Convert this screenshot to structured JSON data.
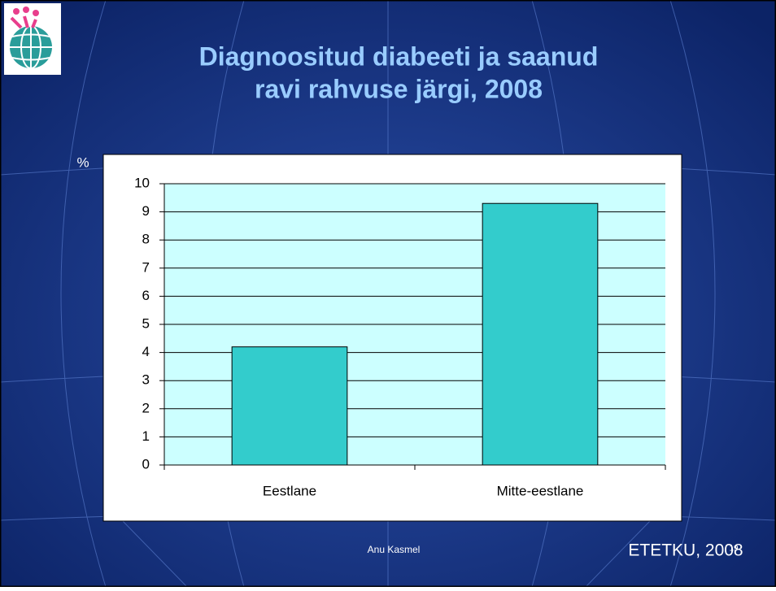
{
  "slide": {
    "title_lines": [
      "Diagnoositud diabeeti ja saanud",
      "ravi rahvuse järgi, 2008"
    ],
    "author": "Anu Kasmel",
    "source": "ETETKU, 2008",
    "slide_number": "19"
  },
  "chart_data": {
    "type": "bar",
    "y_unit_label": "%",
    "categories": [
      "Eestlane",
      "Mitte-eestlane"
    ],
    "values": [
      4.2,
      9.3
    ],
    "color": "#33cccc",
    "ylim": [
      0,
      10
    ],
    "yticks": [
      0,
      1,
      2,
      3,
      4,
      5,
      6,
      7,
      8,
      9,
      10
    ],
    "grid": true
  }
}
